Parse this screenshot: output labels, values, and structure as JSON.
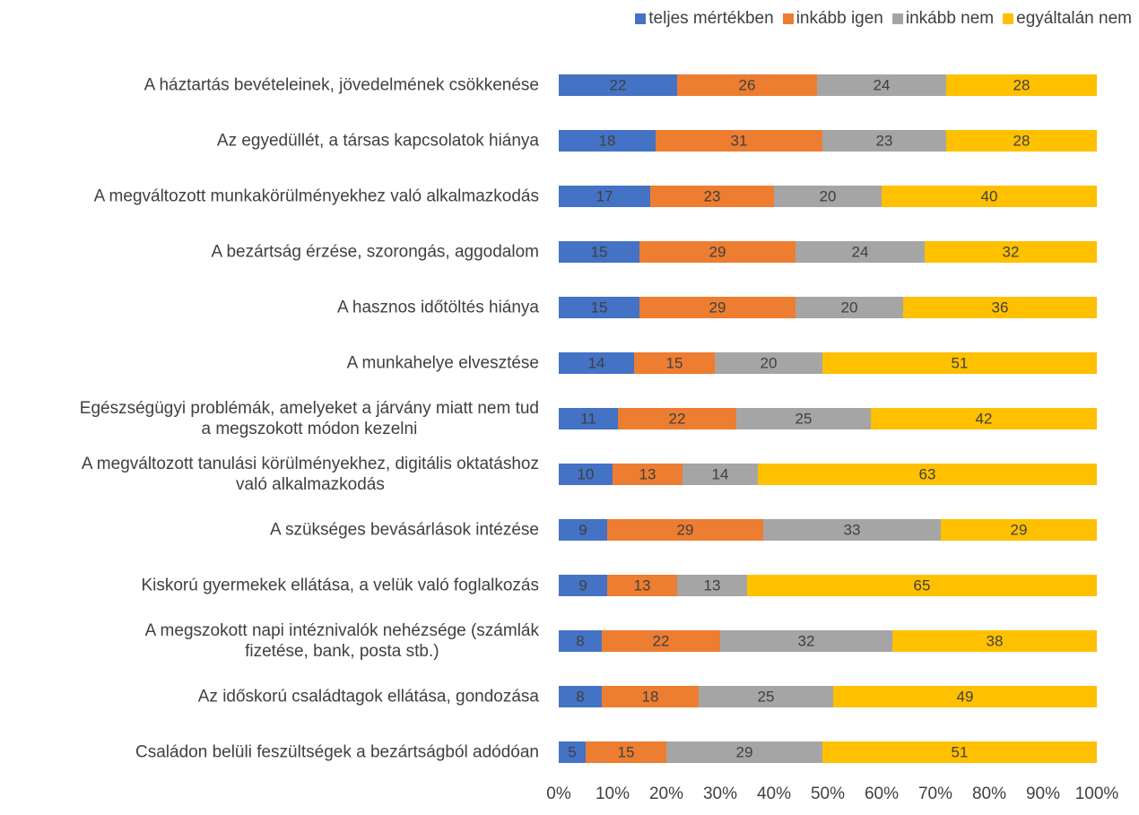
{
  "chart_data": {
    "type": "stacked_barh",
    "categories": [
      "A háztartás bevételeinek, jövedelmének csökkenése",
      "Az egyedüllét, a társas kapcsolatok hiánya",
      "A megváltozott munkakörülményekhez való alkalmazkodás",
      "A bezártság érzése, szorongás, aggodalom",
      "A hasznos időtöltés hiánya",
      "A munkahelye elvesztése",
      "Egészségügyi problémák, amelyeket a járvány miatt nem tud\na megszokott módon kezelni",
      "A megváltozott tanulási körülményekhez, digitális oktatáshoz\nvaló alkalmazkodás",
      "A szükséges bevásárlások intézése",
      "Kiskorú gyermekek ellátása, a velük való foglalkozás",
      "A megszokott napi intéznivalók nehézsége (számlák\nfizetése, bank, posta stb.)",
      "Az időskorú családtagok ellátása, gondozása",
      "Családon belüli feszültségek a bezártságból adódóan"
    ],
    "series": [
      {
        "name": "teljes mértékben",
        "color": "#4472c4",
        "values": [
          22,
          18,
          17,
          15,
          15,
          14,
          11,
          10,
          9,
          9,
          8,
          8,
          5
        ]
      },
      {
        "name": "inkább igen",
        "color": "#ed7d31",
        "values": [
          26,
          31,
          23,
          29,
          29,
          15,
          22,
          13,
          29,
          13,
          22,
          18,
          15
        ]
      },
      {
        "name": "inkább nem",
        "color": "#a5a5a5",
        "values": [
          24,
          23,
          20,
          24,
          20,
          20,
          25,
          14,
          33,
          13,
          32,
          25,
          29
        ]
      },
      {
        "name": "egyáltalán nem",
        "color": "#ffc000",
        "values": [
          28,
          28,
          40,
          32,
          36,
          51,
          42,
          63,
          29,
          65,
          38,
          49,
          51
        ]
      }
    ],
    "xlim": [
      0,
      100
    ],
    "xticks": [
      {
        "value": 0,
        "label": "0%"
      },
      {
        "value": 10,
        "label": "10%"
      },
      {
        "value": 20,
        "label": "20%"
      },
      {
        "value": 30,
        "label": "30%"
      },
      {
        "value": 40,
        "label": "40%"
      },
      {
        "value": 50,
        "label": "50%"
      },
      {
        "value": 60,
        "label": "60%"
      },
      {
        "value": 70,
        "label": "70%"
      },
      {
        "value": 80,
        "label": "80%"
      },
      {
        "value": 90,
        "label": "90%"
      },
      {
        "value": 100,
        "label": "100%"
      }
    ],
    "grid": false,
    "legend": "top-right"
  }
}
